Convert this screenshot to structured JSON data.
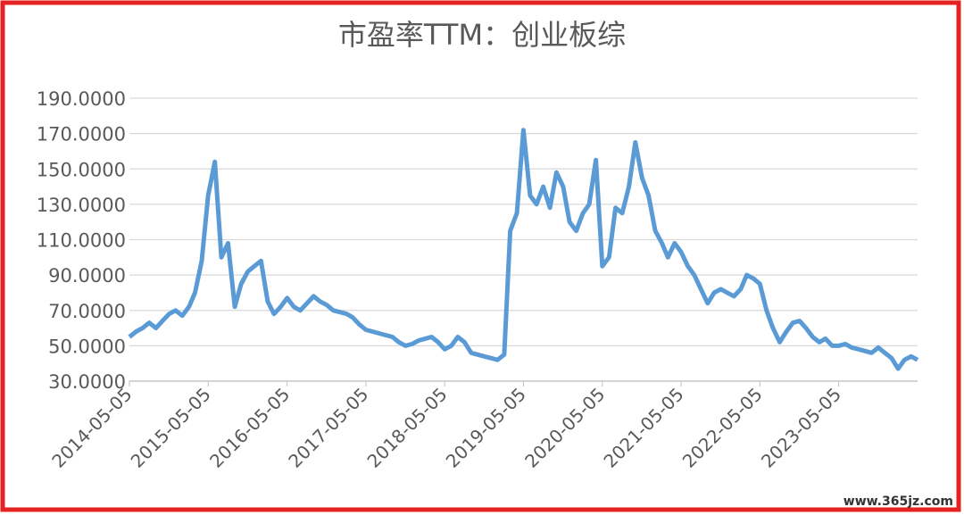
{
  "chart_data": {
    "type": "line",
    "title": "市盈率TTM：创业板综",
    "watermark": "www.365jz.com",
    "x": [
      "2014-05-05",
      "2014-06-05",
      "2014-07-05",
      "2014-08-05",
      "2014-09-05",
      "2014-10-05",
      "2014-11-05",
      "2014-12-05",
      "2015-01-05",
      "2015-02-05",
      "2015-03-05",
      "2015-04-05",
      "2015-05-05",
      "2015-06-05",
      "2015-07-05",
      "2015-08-05",
      "2015-09-05",
      "2015-10-05",
      "2015-11-05",
      "2015-12-05",
      "2016-01-05",
      "2016-02-05",
      "2016-03-05",
      "2016-04-05",
      "2016-05-05",
      "2016-06-05",
      "2016-07-05",
      "2016-08-05",
      "2016-09-05",
      "2016-10-05",
      "2016-11-05",
      "2016-12-05",
      "2017-01-05",
      "2017-02-05",
      "2017-03-05",
      "2017-04-05",
      "2017-05-05",
      "2017-06-05",
      "2017-07-05",
      "2017-08-05",
      "2017-09-05",
      "2017-10-05",
      "2017-11-05",
      "2017-12-05",
      "2018-01-05",
      "2018-02-05",
      "2018-03-05",
      "2018-04-05",
      "2018-05-05",
      "2018-06-05",
      "2018-07-05",
      "2018-08-05",
      "2018-09-05",
      "2018-10-05",
      "2018-11-05",
      "2018-12-05",
      "2019-01-05",
      "2019-02-05",
      "2019-03-05",
      "2019-04-05",
      "2019-05-05",
      "2019-06-05",
      "2019-07-05",
      "2019-08-05",
      "2019-09-05",
      "2019-10-05",
      "2019-11-05",
      "2019-12-05",
      "2020-01-05",
      "2020-02-05",
      "2020-03-05",
      "2020-04-05",
      "2020-05-05",
      "2020-06-05",
      "2020-07-05",
      "2020-08-05",
      "2020-09-05",
      "2020-10-05",
      "2020-11-05",
      "2020-12-05",
      "2021-01-05",
      "2021-02-05",
      "2021-03-05",
      "2021-04-05",
      "2021-05-05",
      "2021-06-05",
      "2021-07-05",
      "2021-08-05",
      "2021-09-05",
      "2021-10-05",
      "2021-11-05",
      "2021-12-05",
      "2022-01-05",
      "2022-02-05",
      "2022-03-05",
      "2022-04-05",
      "2022-05-05",
      "2022-06-05",
      "2022-07-05",
      "2022-08-05",
      "2022-09-05",
      "2022-10-05",
      "2022-11-05",
      "2022-12-05",
      "2023-01-05",
      "2023-02-05",
      "2023-03-05",
      "2023-04-05",
      "2023-05-05",
      "2023-06-05",
      "2023-07-05",
      "2023-08-05",
      "2023-09-05",
      "2023-10-05",
      "2023-11-05",
      "2023-12-05",
      "2024-01-05",
      "2024-02-05",
      "2024-03-05",
      "2024-04-05",
      "2024-05-05"
    ],
    "series": [
      {
        "color": "#5b9bd5",
        "values": [
          55,
          58,
          60,
          63,
          60,
          64,
          68,
          70,
          67,
          72,
          80,
          98,
          135,
          154,
          100,
          108,
          72,
          85,
          92,
          95,
          98,
          75,
          68,
          72,
          77,
          72,
          70,
          74,
          78,
          75,
          73,
          70,
          69,
          68,
          66,
          62,
          59,
          58,
          57,
          56,
          55,
          52,
          50,
          51,
          53,
          54,
          55,
          52,
          48,
          50,
          55,
          52,
          46,
          45,
          44,
          43,
          42,
          45,
          115,
          125,
          172,
          135,
          130,
          140,
          128,
          148,
          140,
          120,
          115,
          125,
          130,
          155,
          95,
          100,
          128,
          125,
          140,
          165,
          145,
          135,
          115,
          108,
          100,
          108,
          103,
          95,
          90,
          82,
          74,
          80,
          82,
          80,
          78,
          82,
          90,
          88,
          85,
          70,
          60,
          52,
          58,
          63,
          64,
          60,
          55,
          52,
          54,
          50,
          50,
          51,
          49,
          48,
          47,
          46,
          49,
          46,
          43,
          37,
          42,
          44,
          42
        ]
      }
    ],
    "xlim": [
      "2014-05-05",
      "2024-05-05"
    ],
    "xticks": [
      "2014-05-05",
      "2015-05-05",
      "2016-05-05",
      "2017-05-05",
      "2018-05-05",
      "2019-05-05",
      "2020-05-05",
      "2021-05-05",
      "2022-05-05",
      "2023-05-05"
    ],
    "ylim": [
      30,
      190
    ],
    "yticks": [
      {
        "value": 30,
        "label": "30.0000"
      },
      {
        "value": 50,
        "label": "50.0000"
      },
      {
        "value": 70,
        "label": "70.0000"
      },
      {
        "value": 90,
        "label": "90.0000"
      },
      {
        "value": 110,
        "label": "110.0000"
      },
      {
        "value": 130,
        "label": "130.0000"
      },
      {
        "value": 150,
        "label": "150.0000"
      },
      {
        "value": 170,
        "label": "170.0000"
      },
      {
        "value": 190,
        "label": "190.0000"
      }
    ],
    "grid": true
  }
}
